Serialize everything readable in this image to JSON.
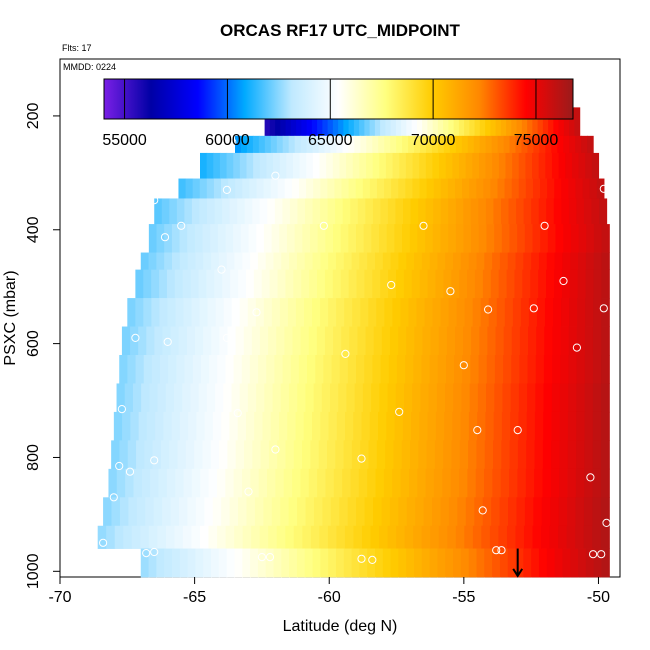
{
  "chart_data": {
    "type": "heatmap",
    "title": "ORCAS RF17 UTC_MIDPOINT",
    "subtitle_flights": "Flts: 17",
    "subtitle_date": "MMDD: 0224",
    "xlabel": "Latitude (deg N)",
    "ylabel": "PSXC (mbar)",
    "xlim": [
      -70,
      -49.2
    ],
    "ylim": [
      1010,
      100
    ],
    "x_reversed": false,
    "y_reversed": true,
    "xticks": [
      -70,
      -65,
      -60,
      -55,
      -50
    ],
    "xtick_labels": [
      "-70",
      "-65",
      "-60",
      "-55",
      "-50"
    ],
    "yticks": [
      200,
      400,
      600,
      800,
      1000
    ],
    "ytick_labels": [
      "200",
      "400",
      "600",
      "800",
      "1000"
    ],
    "colorbar": {
      "min": 54000,
      "max": 76800,
      "ticks": [
        55000,
        60000,
        65000,
        70000,
        75000
      ],
      "tick_labels": [
        "55000",
        "60000",
        "65000",
        "70000",
        "75000"
      ],
      "palette": [
        "#7a1fe6",
        "#0000a5",
        "#0000ff",
        "#00aaff",
        "#bfe9ff",
        "#ffffff",
        "#ffff80",
        "#ffcc00",
        "#ff8800",
        "#ff0000",
        "#9b1b1b"
      ]
    },
    "rows": [
      {
        "p_top": 185,
        "p_bot": 235,
        "lat_min": -62.4,
        "lat_max": -50.7,
        "val_min": 55500,
        "val_max": 76000
      },
      {
        "p_top": 235,
        "p_bot": 265,
        "lat_min": -63.5,
        "lat_max": -50.2,
        "val_min": 60500,
        "val_max": 76000
      },
      {
        "p_top": 265,
        "p_bot": 310,
        "lat_min": -64.8,
        "lat_max": -50.0,
        "val_min": 61000,
        "val_max": 76000
      },
      {
        "p_top": 310,
        "p_bot": 345,
        "lat_min": -65.6,
        "lat_max": -49.8,
        "val_min": 61500,
        "val_max": 76000
      },
      {
        "p_top": 345,
        "p_bot": 390,
        "lat_min": -66.5,
        "lat_max": -49.7,
        "val_min": 61800,
        "val_max": 76000
      },
      {
        "p_top": 390,
        "p_bot": 440,
        "lat_min": -66.7,
        "lat_max": -49.6,
        "val_min": 62000,
        "val_max": 76000
      },
      {
        "p_top": 440,
        "p_bot": 470,
        "lat_min": -67.0,
        "lat_max": -49.6,
        "val_min": 62000,
        "val_max": 76200
      },
      {
        "p_top": 470,
        "p_bot": 520,
        "lat_min": -67.2,
        "lat_max": -49.6,
        "val_min": 62000,
        "val_max": 76200
      },
      {
        "p_top": 520,
        "p_bot": 570,
        "lat_min": -67.5,
        "lat_max": -49.6,
        "val_min": 62200,
        "val_max": 76200
      },
      {
        "p_top": 570,
        "p_bot": 620,
        "lat_min": -67.7,
        "lat_max": -49.6,
        "val_min": 62200,
        "val_max": 76200
      },
      {
        "p_top": 620,
        "p_bot": 670,
        "lat_min": -67.8,
        "lat_max": -49.6,
        "val_min": 62300,
        "val_max": 76200
      },
      {
        "p_top": 670,
        "p_bot": 720,
        "lat_min": -67.9,
        "lat_max": -49.6,
        "val_min": 62300,
        "val_max": 76300
      },
      {
        "p_top": 720,
        "p_bot": 770,
        "lat_min": -68.0,
        "lat_max": -49.6,
        "val_min": 62300,
        "val_max": 76300
      },
      {
        "p_top": 770,
        "p_bot": 820,
        "lat_min": -68.1,
        "lat_max": -49.6,
        "val_min": 62300,
        "val_max": 76300
      },
      {
        "p_top": 820,
        "p_bot": 870,
        "lat_min": -68.2,
        "lat_max": -49.6,
        "val_min": 62400,
        "val_max": 76300
      },
      {
        "p_top": 870,
        "p_bot": 920,
        "lat_min": -68.4,
        "lat_max": -49.6,
        "val_min": 62400,
        "val_max": 76400
      },
      {
        "p_top": 920,
        "p_bot": 960,
        "lat_min": -68.6,
        "lat_max": -49.6,
        "val_min": 62500,
        "val_max": 76400
      },
      {
        "p_top": 960,
        "p_bot": 1010,
        "lat_min": -67.0,
        "lat_max": -49.6,
        "val_min": 62600,
        "val_max": 76400
      }
    ],
    "points": [
      [
        -62.3,
        183
      ],
      [
        -59.1,
        180
      ],
      [
        -56.0,
        180
      ],
      [
        -63.6,
        246
      ],
      [
        -62.0,
        305
      ],
      [
        -63.8,
        330
      ],
      [
        -49.8,
        328
      ],
      [
        -66.5,
        348
      ],
      [
        -65.5,
        393
      ],
      [
        -60.2,
        393
      ],
      [
        -56.5,
        393
      ],
      [
        -52.0,
        393
      ],
      [
        -66.1,
        413
      ],
      [
        -64.0,
        470
      ],
      [
        -51.3,
        490
      ],
      [
        -57.7,
        497
      ],
      [
        -55.5,
        508
      ],
      [
        -62.7,
        545
      ],
      [
        -54.1,
        540
      ],
      [
        -52.4,
        538
      ],
      [
        -49.8,
        538
      ],
      [
        -67.2,
        590
      ],
      [
        -66.0,
        597
      ],
      [
        -63.8,
        590
      ],
      [
        -59.4,
        618
      ],
      [
        -55.0,
        638
      ],
      [
        -50.8,
        607
      ],
      [
        -67.7,
        715
      ],
      [
        -63.4,
        722
      ],
      [
        -57.4,
        720
      ],
      [
        -54.5,
        752
      ],
      [
        -53.0,
        752
      ],
      [
        -62.0,
        786
      ],
      [
        -58.8,
        802
      ],
      [
        -66.5,
        805
      ],
      [
        -67.8,
        815
      ],
      [
        -67.4,
        825
      ],
      [
        -50.3,
        835
      ],
      [
        -68.0,
        870
      ],
      [
        -63.0,
        860
      ],
      [
        -54.3,
        893
      ],
      [
        -49.7,
        915
      ],
      [
        -68.4,
        950
      ],
      [
        -66.8,
        968
      ],
      [
        -66.5,
        966
      ],
      [
        -62.5,
        975
      ],
      [
        -62.2,
        975
      ],
      [
        -58.8,
        978
      ],
      [
        -58.4,
        980
      ],
      [
        -53.8,
        963
      ],
      [
        -53.6,
        963
      ],
      [
        -50.2,
        970
      ],
      [
        -49.9,
        970
      ]
    ],
    "marker": {
      "lat": -53.0,
      "p_top": 960,
      "p_bot": 1008
    }
  }
}
